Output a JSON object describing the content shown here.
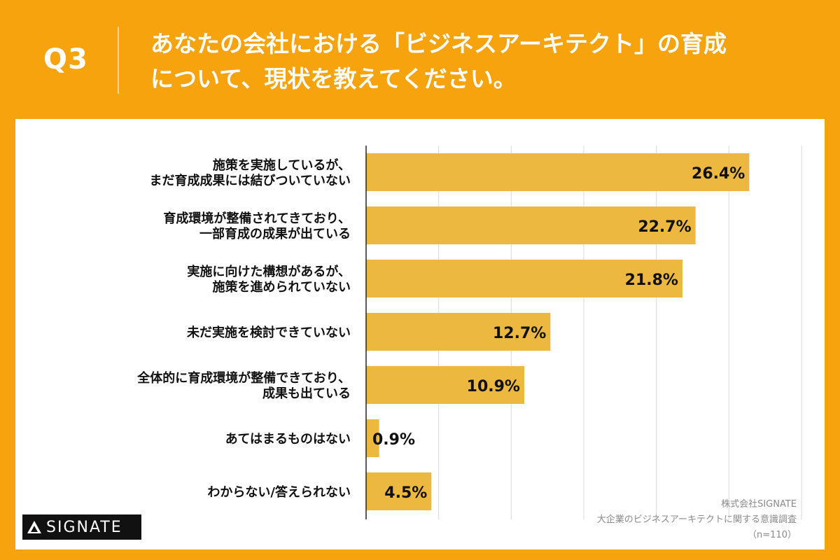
{
  "header": {
    "question_number": "Q3",
    "title": "あなたの会社における「ビジネスアーキテクト」の育成\nについて、現状を教えてください。"
  },
  "colors": {
    "background": "#f6a30e",
    "bar": "#edb840",
    "grid": "#d9d9d9",
    "axis": "#222222",
    "text": "#111111"
  },
  "chart_data": {
    "type": "bar",
    "orientation": "horizontal",
    "categories": [
      [
        "施策を実施しているが、",
        "まだ育成成果には結びついていない"
      ],
      [
        "育成環境が整備されてきており、",
        "一部育成の成果が出ている"
      ],
      [
        "実施に向けた構想があるが、",
        "施策を進められていない"
      ],
      [
        "未だ実施を検討できていない"
      ],
      [
        "全体的に育成環境が整備できており、",
        "成果も出ている"
      ],
      [
        "あてはまるものはない"
      ],
      [
        "わからない/答えられない"
      ]
    ],
    "values": [
      26.4,
      22.7,
      21.8,
      12.7,
      10.9,
      0.9,
      4.5
    ],
    "value_labels": [
      "26.4%",
      "22.7%",
      "21.8%",
      "12.7%",
      "10.9%",
      "0.9%",
      "4.5%"
    ],
    "xlim": [
      0,
      30
    ],
    "grid": true,
    "legend": "none"
  },
  "footer": {
    "credit_company": "株式会社SIGNATE",
    "credit_survey": "大企業のビジネスアーキテクトに関する意識調査",
    "credit_n": "（n=110）"
  },
  "logo": {
    "text": "SIGNATE",
    "icon": "signate-triangle-icon"
  }
}
